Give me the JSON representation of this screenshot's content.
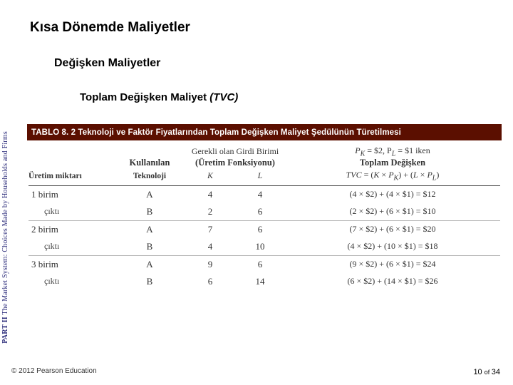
{
  "headings": {
    "h1": "Kısa Dönemde Maliyetler",
    "h2": "Değişken Maliyetler",
    "h3_pre": "Toplam Değişken Maliyet ",
    "h3_ital": "(TVC)"
  },
  "caption": "TABLO 8. 2  Teknoloji ve Faktör Fiyatlarından Toplam Değişken Maliyet Şedülünün Türetilmesi",
  "side": {
    "bold": "PART II",
    "rest": " The Market System: Choices Made by Households and Firms"
  },
  "footer": {
    "left": "© 2012 Pearson Education",
    "right_pre": "10 ",
    "right_of": "of ",
    "right_post": "34"
  },
  "table": {
    "hdrTop": {
      "col2span": "Gerekli olan Girdi Birimi",
      "col4a": "P",
      "col4b": " = $2, P",
      "col4c": " = $1 iken"
    },
    "hdrMid": {
      "c0": "",
      "c1": "Kullanılan",
      "c2": "(Üretim Fonksiyonu)",
      "c4": "Toplam Değişken"
    },
    "hdrBot": {
      "c0": "Üretim miktarı",
      "c1": "Teknoloji",
      "c2": "K",
      "c3": "L",
      "c4_f": "TVC = (K × P",
      "c4_g": ") + (L × P",
      "c4_h": ")"
    },
    "rows": [
      {
        "label": "1 birim",
        "tech": "A",
        "k": "4",
        "l": "4",
        "tvc": "(4 × $2) + (4 × $1) = $12"
      },
      {
        "sub": "çıktı",
        "tech": "B",
        "k": "2",
        "l": "6",
        "tvc": "(2 × $2) + (6 × $1) = $10"
      },
      {
        "label": "2 birim",
        "tech": "A",
        "k": "7",
        "l": "6",
        "tvc": "(7 × $2) + (6 × $1) = $20"
      },
      {
        "sub": "çıktı",
        "tech": "B",
        "k": "4",
        "l": "10",
        "tvc": "(4 × $2) + (10 × $1) = $18"
      },
      {
        "label": "3 birim",
        "tech": "A",
        "k": "9",
        "l": "6",
        "tvc": "(9 × $2) + (6 × $1) = $24"
      },
      {
        "sub": "çıktı",
        "tech": "B",
        "k": "6",
        "l": "14",
        "tvc": "(6 × $2) + (14 × $1) = $26"
      }
    ]
  }
}
